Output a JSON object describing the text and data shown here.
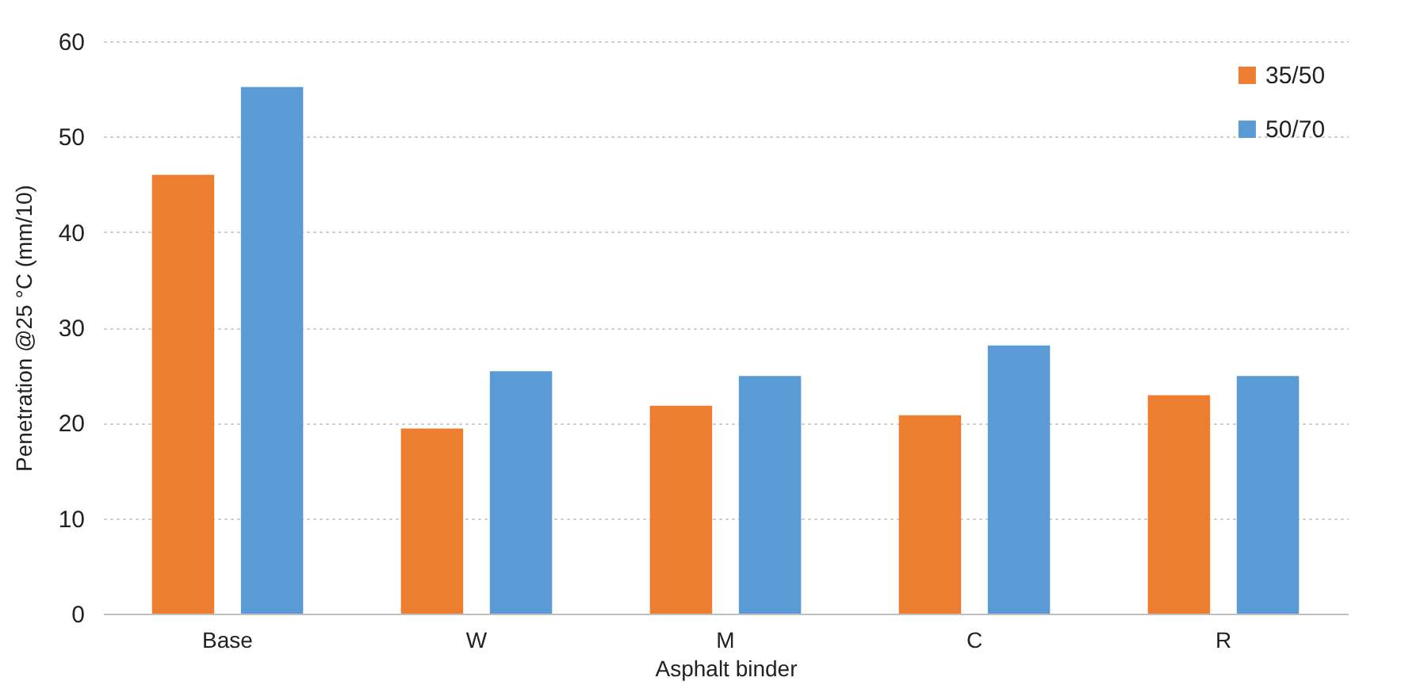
{
  "chart_data": {
    "type": "bar",
    "xlabel": "Asphalt binder",
    "ylabel": "Penetration @25 °C (mm/10)",
    "categories": [
      "Base",
      "W",
      "M",
      "C",
      "R"
    ],
    "series": [
      {
        "name": "35/50",
        "color": "#ed7d31",
        "values": [
          46,
          19.4,
          21.8,
          20.8,
          22.9
        ]
      },
      {
        "name": "50/70",
        "color": "#5b9bd5",
        "values": [
          55.2,
          25.4,
          24.9,
          28.1,
          24.9
        ]
      }
    ],
    "ylim": [
      0,
      60
    ],
    "yticks": [
      0,
      10,
      20,
      30,
      40,
      50,
      60
    ],
    "grid": "y",
    "legend": "top right"
  }
}
